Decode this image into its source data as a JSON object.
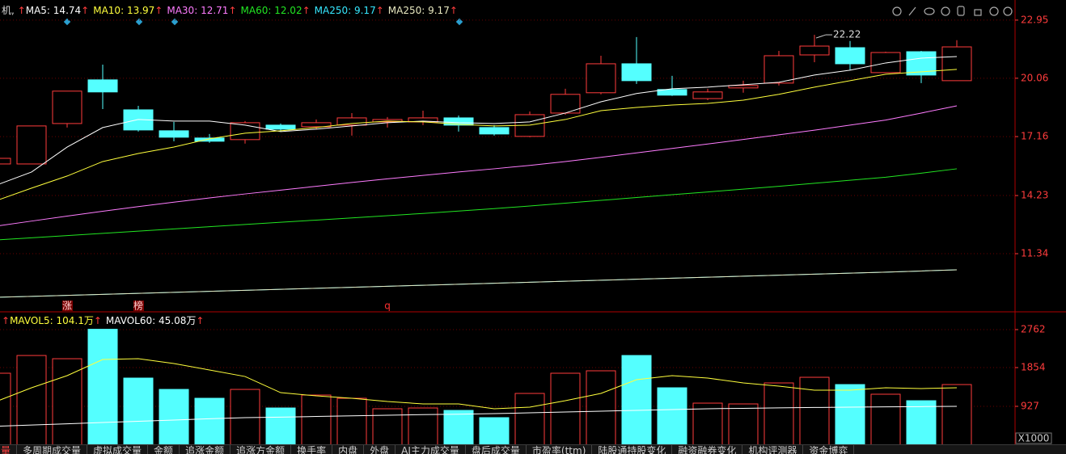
{
  "header": {
    "title": "机,",
    "arrow": "↑"
  },
  "chart_data": [
    {
      "type": "candlestick",
      "up_color": "#ff3c3c",
      "down_color": "#54ffff",
      "open": [
        15.8,
        15.8,
        17.81,
        19.98,
        18.49,
        17.45,
        17.09,
        17.01,
        17.73,
        17.65,
        17.73,
        17.89,
        17.89,
        18.09,
        17.61,
        17.17,
        18.33,
        19.34,
        20.78,
        19.5,
        19.05,
        19.58,
        19.82,
        21.22,
        21.58,
        20.34,
        21.38,
        19.94
      ],
      "high": [
        16.08,
        17.69,
        19.42,
        20.74,
        18.69,
        17.89,
        17.29,
        17.93,
        17.81,
        18.01,
        18.33,
        18.13,
        18.45,
        18.21,
        17.73,
        18.41,
        19.54,
        21.18,
        22.11,
        20.18,
        19.54,
        19.94,
        21.42,
        22.22,
        21.91,
        21.38,
        21.42,
        21.95
      ],
      "low": [
        15.8,
        15.8,
        17.61,
        18.53,
        17.41,
        16.93,
        16.85,
        16.81,
        17.41,
        17.53,
        17.21,
        17.61,
        17.73,
        17.41,
        17.21,
        17.13,
        18.25,
        19.26,
        19.78,
        19.18,
        18.97,
        19.34,
        19.7,
        20.86,
        20.46,
        20.34,
        19.82,
        19.94
      ],
      "close": [
        16.08,
        17.69,
        19.42,
        19.38,
        17.49,
        17.13,
        16.93,
        17.85,
        17.53,
        17.85,
        18.09,
        18.01,
        18.09,
        17.73,
        17.29,
        18.25,
        19.26,
        20.78,
        19.94,
        19.22,
        19.38,
        19.7,
        21.18,
        21.66,
        20.78,
        21.34,
        20.22,
        21.62
      ],
      "series": [
        {
          "name": "MA5",
          "color": "#ffffff",
          "values": [
            14.74,
            15.4,
            16.64,
            17.61,
            18.01,
            17.93,
            17.93,
            17.73,
            17.41,
            17.53,
            17.69,
            17.85,
            17.93,
            17.85,
            17.81,
            17.89,
            18.33,
            18.89,
            19.3,
            19.54,
            19.62,
            19.74,
            19.86,
            20.22,
            20.46,
            20.82,
            21.06,
            21.14
          ]
        },
        {
          "name": "MA10",
          "color": "#ffff3c",
          "values": [
            13.97,
            14.6,
            15.2,
            15.92,
            16.32,
            16.64,
            17.05,
            17.33,
            17.45,
            17.61,
            17.81,
            17.93,
            17.89,
            17.77,
            17.69,
            17.73,
            18.01,
            18.45,
            18.61,
            18.73,
            18.81,
            18.97,
            19.26,
            19.62,
            19.94,
            20.26,
            20.38,
            20.5
          ]
        },
        {
          "name": "MA30",
          "color": "#ff7cff",
          "values": [
            12.71,
            12.96,
            13.21,
            13.45,
            13.68,
            13.9,
            14.11,
            14.31,
            14.5,
            14.69,
            14.88,
            15.06,
            15.23,
            15.4,
            15.56,
            15.73,
            15.92,
            16.13,
            16.35,
            16.57,
            16.79,
            17.02,
            17.25,
            17.48,
            17.73,
            17.98,
            18.33,
            18.69
          ]
        },
        {
          "name": "MA60",
          "color": "#22e622",
          "values": [
            12.02,
            12.13,
            12.24,
            12.35,
            12.46,
            12.57,
            12.68,
            12.79,
            12.9,
            13.01,
            13.12,
            13.23,
            13.34,
            13.46,
            13.58,
            13.71,
            13.85,
            13.99,
            14.13,
            14.27,
            14.41,
            14.55,
            14.69,
            14.84,
            14.99,
            15.14,
            15.34,
            15.56
          ]
        },
        {
          "name": "MA250",
          "color": "#36e8ff",
          "values": [
            9.17,
            9.22,
            9.27,
            9.32,
            9.37,
            9.42,
            9.47,
            9.52,
            9.57,
            9.62,
            9.67,
            9.72,
            9.77,
            9.82,
            9.87,
            9.92,
            9.97,
            10.02,
            10.07,
            10.12,
            10.17,
            10.22,
            10.27,
            10.32,
            10.37,
            10.42,
            10.48,
            10.54
          ]
        },
        {
          "name": "MA250",
          "color": "#e8e8c0",
          "values": [
            9.17,
            9.22,
            9.27,
            9.32,
            9.37,
            9.42,
            9.47,
            9.52,
            9.57,
            9.62,
            9.67,
            9.72,
            9.77,
            9.82,
            9.87,
            9.92,
            9.97,
            10.02,
            10.07,
            10.12,
            10.17,
            10.22,
            10.27,
            10.32,
            10.37,
            10.42,
            10.48,
            10.54
          ]
        }
      ],
      "ylim": [
        8.49,
        23.95
      ],
      "yticks": [
        22.95,
        20.06,
        17.16,
        14.23,
        11.34
      ],
      "grid": true,
      "annotations": [
        "涨",
        "榜",
        "q"
      ]
    },
    {
      "type": "bar",
      "values": [
        1719,
        2143,
        2066,
        2770,
        1603,
        1332,
        1120,
        1332,
        888,
        1197,
        1120,
        869,
        888,
        830,
        657,
        1236,
        1719,
        1777,
        2143,
        1371,
        1004,
        985,
        1487,
        1622,
        1448,
        1217,
        1062,
        1448
      ],
      "series": [
        {
          "name": "MAVOL5",
          "color": "#ffff3c",
          "values": [
            1041,
            1371,
            1661,
            2047,
            2066,
            1950,
            1796,
            1641,
            1255,
            1178,
            1120,
            1043,
            985,
            985,
            869,
            908,
            1062,
            1236,
            1564,
            1661,
            1603,
            1487,
            1410,
            1313,
            1313,
            1371,
            1352,
            1371
          ],
          "value_labels": [
            "104.1万",
            null,
            null,
            null,
            null,
            null,
            null,
            null,
            null,
            null,
            null,
            null,
            null,
            null,
            null,
            null,
            null,
            null,
            null,
            null,
            null,
            null,
            null,
            null,
            null,
            null,
            null,
            null
          ]
        },
        {
          "name": "MAVOL60",
          "color": "#ffffff",
          "values": [
            451,
            480,
            510,
            540,
            570,
            600,
            630,
            657,
            670,
            685,
            700,
            715,
            728,
            740,
            753,
            772,
            792,
            812,
            830,
            850,
            870,
            880,
            890,
            900,
            908,
            915,
            921,
            927
          ],
          "value_labels": [
            "45.08万",
            null,
            null,
            null,
            null,
            null,
            null,
            null,
            null,
            null,
            null,
            null,
            null,
            null,
            null,
            null,
            null,
            null,
            null,
            null,
            null,
            null,
            null,
            null,
            null,
            null,
            null,
            null
          ]
        }
      ],
      "ylim": [
        0,
        2994
      ],
      "yticks": [
        2762,
        1854,
        927
      ],
      "unit_label": "X1000",
      "grid": true
    }
  ],
  "tabs": [
    "量",
    "多周期成交量",
    "虚拟成交量",
    "金额",
    "追涨金额",
    "追涨方金额",
    "换手率",
    "内盘",
    "外盘",
    "AI主力成交量",
    "盘后成交量",
    "市盈率(ttm)",
    "陆股通持股变化",
    "融资融券变化",
    "机构评测器",
    "资金博弈"
  ]
}
